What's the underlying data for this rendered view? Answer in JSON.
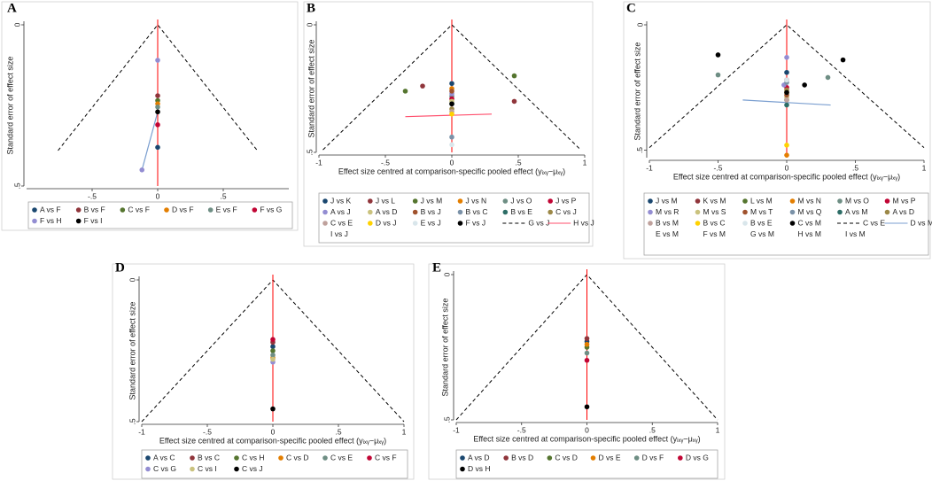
{
  "chart_data": [
    {
      "type": "funnel",
      "label": "A",
      "x_label": "Effect size centred at comparison-specific pooled effect (yᵢₓᵧ−μₓᵧ)",
      "y_label": "Standard error of effect size",
      "xlim": [
        -1,
        1
      ],
      "ylim": [
        0,
        0.5
      ],
      "y_reversed": true,
      "xticks": [
        {
          "value": -0.5,
          "label": "-.5"
        },
        0,
        {
          "value": 0.5,
          "label": ".5"
        }
      ],
      "yticks": [
        0,
        {
          "value": 0.5,
          "label": ".5"
        }
      ],
      "refline": {
        "x": 0,
        "color": "#ff0000"
      },
      "funnel": {
        "color": "#000000",
        "x": [
          -0.76,
          0,
          0.76
        ],
        "y": [
          0.39,
          0,
          0.39
        ]
      },
      "lines": [
        {
          "color": "#7b9fd0",
          "x": [
            -0.12,
            0
          ],
          "y": [
            0.45,
            0.27
          ]
        }
      ],
      "series": [
        {
          "name": "A vs F",
          "style": "marker",
          "color": "#1a476f",
          "x": [
            0
          ],
          "y": [
            0.38
          ]
        },
        {
          "name": "B vs F",
          "style": "marker",
          "color": "#90353b",
          "x": [
            0
          ],
          "y": [
            0.22
          ]
        },
        {
          "name": "C vs F",
          "style": "marker",
          "color": "#55752f",
          "x": [
            0
          ],
          "y": [
            0.235
          ]
        },
        {
          "name": "D vs F",
          "style": "marker",
          "color": "#e37e00",
          "x": [
            0
          ],
          "y": [
            0.245
          ]
        },
        {
          "name": "E vs F",
          "style": "marker",
          "color": "#6e8e84",
          "x": [
            0
          ],
          "y": [
            0.255
          ]
        },
        {
          "name": "F vs G",
          "style": "marker",
          "color": "#c10534",
          "x": [
            0
          ],
          "y": [
            0.31
          ]
        },
        {
          "name": "F vs H",
          "style": "marker",
          "color": "#938dd2",
          "x": [
            0,
            -0.12
          ],
          "y": [
            0.11,
            0.45
          ]
        },
        {
          "name": "F vs I",
          "style": "marker",
          "color": "#000000",
          "x": [
            0
          ],
          "y": [
            0.27
          ]
        }
      ]
    },
    {
      "type": "funnel",
      "label": "B",
      "x_label": "Effect size centred at comparison-specific pooled effect (yᵢₓᵧ−μₓᵧ)",
      "y_label": "Standard error of effect size",
      "xlim": [
        -1,
        1
      ],
      "ylim": [
        0,
        0.5
      ],
      "y_reversed": true,
      "xticks": [
        -1,
        {
          "value": -0.5,
          "label": "-.5"
        },
        0,
        {
          "value": 0.5,
          "label": ".5"
        },
        1
      ],
      "yticks": [
        0,
        {
          "value": 0.5,
          "label": ".5"
        }
      ],
      "refline": {
        "x": 0,
        "color": "#ff0000"
      },
      "series": [
        {
          "name": "J vs K",
          "style": "marker",
          "color": "#1a476f",
          "x": [
            0
          ],
          "y": [
            0.23
          ]
        },
        {
          "name": "J vs L",
          "style": "marker",
          "color": "#90353b",
          "x": [
            -0.22,
            0.47
          ],
          "y": [
            0.24,
            0.3
          ]
        },
        {
          "name": "J vs M",
          "style": "marker",
          "color": "#55752f",
          "x": [
            -0.35,
            0.47
          ],
          "y": [
            0.26,
            0.2
          ]
        },
        {
          "name": "J vs N",
          "style": "marker",
          "color": "#e37e00",
          "x": [
            0
          ],
          "y": [
            0.25
          ]
        },
        {
          "name": "J vs O",
          "style": "marker",
          "color": "#6e8e84",
          "x": [
            0
          ],
          "y": [
            0.28
          ]
        },
        {
          "name": "J vs P",
          "style": "marker",
          "color": "#c10534",
          "x": [
            0
          ],
          "y": [
            0.29
          ]
        },
        {
          "name": "A vs J",
          "style": "marker",
          "color": "#938dd2",
          "x": [
            0
          ],
          "y": [
            0.27
          ]
        },
        {
          "name": "A vs D",
          "style": "marker",
          "color": "#cac27e",
          "x": [
            0
          ],
          "y": [
            0.3
          ]
        },
        {
          "name": "B vs J",
          "style": "marker",
          "color": "#a0522d",
          "x": [
            0
          ],
          "y": [
            0.26
          ]
        },
        {
          "name": "B vs C",
          "style": "marker",
          "color": "#7b92a8",
          "x": [
            0
          ],
          "y": [
            0.44
          ]
        },
        {
          "name": "B vs E",
          "style": "marker",
          "color": "#2d6d66",
          "x": [
            0
          ],
          "y": [
            0.31
          ]
        },
        {
          "name": "C vs J",
          "style": "marker",
          "color": "#9c8847",
          "x": [
            0
          ],
          "y": [
            0.33
          ]
        },
        {
          "name": "C vs E",
          "style": "marker",
          "color": "#bfa19c",
          "x": [
            0
          ],
          "y": [
            0.34
          ]
        },
        {
          "name": "D vs J",
          "style": "marker",
          "color": "#ffd200",
          "x": [
            0
          ],
          "y": [
            0.35
          ]
        },
        {
          "name": "E vs J",
          "style": "marker",
          "color": "#d9e6eb",
          "x": [
            0
          ],
          "y": [
            0.47
          ]
        },
        {
          "name": "F vs J",
          "style": "marker",
          "color": "#000000",
          "x": [
            0
          ],
          "y": [
            0.31
          ]
        },
        {
          "name": "G vs J",
          "style": "dashed",
          "color": "#000000",
          "x": [
            -0.97,
            0,
            0.97
          ],
          "y": [
            0.49,
            0,
            0.49
          ]
        },
        {
          "name": "H vs J",
          "style": "line",
          "color": "#ff4f6d",
          "x": [
            -0.35,
            0.3
          ],
          "y": [
            0.36,
            0.35
          ]
        },
        {
          "name": "I vs J",
          "style": "none"
        }
      ]
    },
    {
      "type": "funnel",
      "label": "C",
      "x_label": "Effect size centred at comparison-specific pooled effect (yᵢₓᵧ−μₓᵧ)",
      "y_label": "Standard error of effect size",
      "xlim": [
        -1,
        1
      ],
      "ylim": [
        0,
        0.53
      ],
      "y_reversed": true,
      "xticks": [
        -1,
        {
          "value": -0.5,
          "label": "-.5"
        },
        0,
        {
          "value": 0.5,
          "label": ".5"
        },
        1
      ],
      "yticks": [
        0,
        {
          "value": 0.5,
          "label": ".5"
        }
      ],
      "refline": {
        "x": 0,
        "color": "#ff0000"
      },
      "series": [
        {
          "name": "J vs M",
          "style": "marker",
          "color": "#1a476f",
          "x": [
            0
          ],
          "y": [
            0.19
          ]
        },
        {
          "name": "K vs M",
          "style": "marker",
          "color": "#90353b",
          "x": [
            0
          ],
          "y": [
            0.22
          ]
        },
        {
          "name": "L vs M",
          "style": "marker",
          "color": "#55752f",
          "x": [
            0
          ],
          "y": [
            0.3
          ]
        },
        {
          "name": "M vs N",
          "style": "marker",
          "color": "#e37e00",
          "x": [
            0,
            0
          ],
          "y": [
            0.27,
            0.52
          ]
        },
        {
          "name": "M vs O",
          "style": "marker",
          "color": "#6e8e84",
          "x": [
            -0.5,
            0.3
          ],
          "y": [
            0.2,
            0.21
          ]
        },
        {
          "name": "M vs P",
          "style": "marker",
          "color": "#c10534",
          "x": [
            0
          ],
          "y": [
            0.25
          ]
        },
        {
          "name": "M vs R",
          "style": "marker",
          "color": "#938dd2",
          "x": [
            0,
            -0.02
          ],
          "y": [
            0.13,
            0.24
          ]
        },
        {
          "name": "M vs S",
          "style": "marker",
          "color": "#cac27e",
          "x": [
            0
          ],
          "y": [
            0.29
          ]
        },
        {
          "name": "M vs T",
          "style": "marker",
          "color": "#a0522d",
          "x": [
            0
          ],
          "y": [
            0.28
          ]
        },
        {
          "name": "M vs Q",
          "style": "marker",
          "color": "#7b92a8",
          "x": [
            0
          ],
          "y": [
            0.23
          ]
        },
        {
          "name": "A vs M",
          "style": "marker",
          "color": "#2d6d66",
          "x": [
            0
          ],
          "y": [
            0.32
          ]
        },
        {
          "name": "A vs D",
          "style": "marker",
          "color": "#9c8847",
          "x": [
            0
          ],
          "y": [
            0.26
          ]
        },
        {
          "name": "B vs M",
          "style": "marker",
          "color": "#bfa19c",
          "x": [
            0
          ],
          "y": [
            0.3
          ]
        },
        {
          "name": "B vs C",
          "style": "marker",
          "color": "#ffd200",
          "x": [
            0
          ],
          "y": [
            0.48
          ]
        },
        {
          "name": "B vs E",
          "style": "marker",
          "color": "#d9e6eb",
          "x": [
            0
          ],
          "y": [
            0.22
          ]
        },
        {
          "name": "C vs M",
          "style": "marker",
          "color": "#000000",
          "x": [
            -0.5,
            0.41,
            0.13,
            0
          ],
          "y": [
            0.12,
            0.14,
            0.24,
            0.27
          ]
        },
        {
          "name": "C vs E",
          "style": "dashed",
          "color": "#000000",
          "x": [
            -1,
            0,
            1
          ],
          "y": [
            0.49,
            0,
            0.49
          ]
        },
        {
          "name": "D vs M",
          "style": "line",
          "color": "#7b9fd0",
          "x": [
            -0.32,
            0.32
          ],
          "y": [
            0.3,
            0.32
          ]
        },
        {
          "name": "E vs M",
          "style": "none"
        },
        {
          "name": "F vs M",
          "style": "none"
        },
        {
          "name": "G vs M",
          "style": "none"
        },
        {
          "name": "H vs M",
          "style": "none"
        },
        {
          "name": "I vs M",
          "style": "none"
        }
      ]
    },
    {
      "type": "funnel",
      "label": "D",
      "x_label": "Effect size centred at comparison-specific pooled effect (yᵢₓᵧ−μₓᵧ)",
      "y_label": "Standard error of effect size",
      "xlim": [
        -1,
        1
      ],
      "ylim": [
        0,
        0.5
      ],
      "y_reversed": true,
      "xticks": [
        -1,
        {
          "value": -0.5,
          "label": "-.5"
        },
        0,
        {
          "value": 0.5,
          "label": ".5"
        },
        1
      ],
      "yticks": [
        0,
        {
          "value": 0.5,
          "label": ".5"
        }
      ],
      "refline": {
        "x": 0,
        "color": "#ff0000"
      },
      "funnel": {
        "color": "#000000",
        "x": [
          -1,
          0,
          1
        ],
        "y": [
          0.5,
          0,
          0.5
        ]
      },
      "series": [
        {
          "name": "A vs C",
          "style": "marker",
          "color": "#1a476f",
          "x": [
            0
          ],
          "y": [
            0.235
          ]
        },
        {
          "name": "B vs C",
          "style": "marker",
          "color": "#90353b",
          "x": [
            0
          ],
          "y": [
            0.22
          ]
        },
        {
          "name": "C vs H",
          "style": "marker",
          "color": "#55752f",
          "x": [
            0
          ],
          "y": [
            0.25
          ]
        },
        {
          "name": "C vs D",
          "style": "marker",
          "color": "#e37e00",
          "x": [
            0
          ],
          "y": [
            0.275
          ]
        },
        {
          "name": "C vs E",
          "style": "marker",
          "color": "#6e8e84",
          "x": [
            0
          ],
          "y": [
            0.265
          ]
        },
        {
          "name": "C vs F",
          "style": "marker",
          "color": "#c10534",
          "x": [
            0
          ],
          "y": [
            0.21
          ]
        },
        {
          "name": "C vs G",
          "style": "marker",
          "color": "#938dd2",
          "x": [
            0
          ],
          "y": [
            0.29
          ]
        },
        {
          "name": "C vs I",
          "style": "marker",
          "color": "#cac27e",
          "x": [
            0
          ],
          "y": [
            0.28
          ]
        },
        {
          "name": "C vs J",
          "style": "marker",
          "color": "#000000",
          "x": [
            0
          ],
          "y": [
            0.455
          ]
        }
      ]
    },
    {
      "type": "funnel",
      "label": "E",
      "x_label": "Effect size centred at comparison-specific pooled effect (yᵢₓᵧ−μₓᵧ)",
      "y_label": "Standard error of effect size",
      "xlim": [
        -1,
        1
      ],
      "ylim": [
        0,
        0.5
      ],
      "y_reversed": true,
      "xticks": [
        -1,
        {
          "value": -0.5,
          "label": "-.5"
        },
        0,
        {
          "value": 0.5,
          "label": ".5"
        },
        1
      ],
      "yticks": [
        0,
        {
          "value": 0.5,
          "label": ".5"
        }
      ],
      "refline": {
        "x": 0,
        "color": "#ff0000"
      },
      "funnel": {
        "color": "#000000",
        "x": [
          -1,
          0,
          1
        ],
        "y": [
          0.5,
          0,
          0.5
        ]
      },
      "series": [
        {
          "name": "A vs D",
          "style": "marker",
          "color": "#1a476f",
          "x": [
            0
          ],
          "y": [
            0.23
          ]
        },
        {
          "name": "B vs D",
          "style": "marker",
          "color": "#90353b",
          "x": [
            0
          ],
          "y": [
            0.22
          ]
        },
        {
          "name": "C vs D",
          "style": "marker",
          "color": "#55752f",
          "x": [
            0
          ],
          "y": [
            0.25
          ]
        },
        {
          "name": "D vs E",
          "style": "marker",
          "color": "#e37e00",
          "x": [
            0
          ],
          "y": [
            0.24
          ]
        },
        {
          "name": "D vs F",
          "style": "marker",
          "color": "#6e8e84",
          "x": [
            0
          ],
          "y": [
            0.27
          ]
        },
        {
          "name": "D vs G",
          "style": "marker",
          "color": "#c10534",
          "x": [
            0
          ],
          "y": [
            0.295
          ]
        },
        {
          "name": "D vs H",
          "style": "marker",
          "color": "#000000",
          "x": [
            0
          ],
          "y": [
            0.455
          ]
        }
      ]
    }
  ]
}
